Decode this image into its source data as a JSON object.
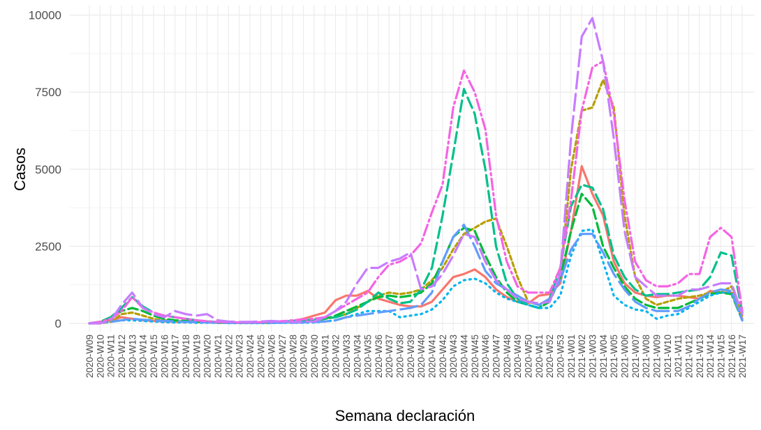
{
  "chart_data": {
    "type": "line",
    "xlabel": "Semana declaración",
    "ylabel": "Casos",
    "ylim": [
      0,
      10000
    ],
    "yticks": [
      0,
      2500,
      5000,
      7500,
      10000
    ],
    "grid": true,
    "legend": "none",
    "categories": [
      "2020-W09",
      "2020-W10",
      "2020-W11",
      "2020-W12",
      "2020-W13",
      "2020-W14",
      "2020-W15",
      "2020-W16",
      "2020-W17",
      "2020-W18",
      "2020-W19",
      "2020-W20",
      "2020-W21",
      "2020-W22",
      "2020-W23",
      "2020-W24",
      "2020-W25",
      "2020-W26",
      "2020-W27",
      "2020-W28",
      "2020-W29",
      "2020-W30",
      "2020-W31",
      "2020-W32",
      "2020-W33",
      "2020-W34",
      "2020-W35",
      "2020-W36",
      "2020-W37",
      "2020-W38",
      "2020-W39",
      "2020-W40",
      "2020-W41",
      "2020-W42",
      "2020-W43",
      "2020-W44",
      "2020-W45",
      "2020-W46",
      "2020-W47",
      "2020-W48",
      "2020-W49",
      "2020-W50",
      "2020-W51",
      "2020-W52",
      "2020-W53",
      "2021-W01",
      "2021-W02",
      "2021-W03",
      "2021-W04",
      "2021-W05",
      "2021-W06",
      "2021-W07",
      "2021-W08",
      "2021-W09",
      "2021-W10",
      "2021-W11",
      "2021-W12",
      "2021-W13",
      "2021-W14",
      "2021-W15",
      "2021-W16",
      "2021-W17"
    ],
    "series": [
      {
        "color": "#F8766D",
        "dash": "solid",
        "values": [
          0,
          50,
          100,
          200,
          150,
          100,
          80,
          60,
          50,
          50,
          40,
          30,
          20,
          20,
          20,
          20,
          20,
          30,
          40,
          80,
          150,
          250,
          350,
          750,
          900,
          900,
          1050,
          800,
          700,
          600,
          550,
          550,
          700,
          1100,
          1500,
          1600,
          1750,
          1500,
          1100,
          850,
          700,
          650,
          900,
          950,
          1300,
          3000,
          5100,
          4200,
          3500,
          2000,
          1300,
          1000,
          900,
          850,
          900,
          900,
          850,
          800,
          1050,
          1000,
          1000,
          150
        ]
      },
      {
        "color": "#B79F00",
        "dash": "6,4",
        "values": [
          0,
          0,
          50,
          300,
          350,
          250,
          150,
          100,
          80,
          60,
          50,
          30,
          20,
          20,
          20,
          20,
          20,
          20,
          30,
          40,
          50,
          100,
          150,
          200,
          300,
          500,
          700,
          900,
          1000,
          950,
          1000,
          1100,
          1400,
          1800,
          2400,
          2900,
          3100,
          3300,
          3400,
          2500,
          1500,
          700,
          600,
          800,
          1500,
          5000,
          6900,
          7000,
          7900,
          7000,
          3500,
          1500,
          800,
          600,
          700,
          800,
          850,
          900,
          1000,
          1000,
          1200,
          250
        ]
      },
      {
        "color": "#00BA38",
        "dash": "14,6",
        "values": [
          0,
          50,
          200,
          400,
          500,
          400,
          250,
          150,
          100,
          80,
          60,
          40,
          20,
          20,
          20,
          20,
          20,
          20,
          30,
          40,
          50,
          80,
          150,
          250,
          400,
          550,
          700,
          850,
          900,
          850,
          900,
          1000,
          1300,
          2000,
          2800,
          3100,
          3000,
          2200,
          1500,
          1000,
          700,
          600,
          500,
          700,
          1500,
          3000,
          4200,
          3800,
          2500,
          1800,
          1200,
          800,
          600,
          500,
          500,
          500,
          650,
          800,
          950,
          1000,
          950,
          100
        ]
      },
      {
        "color": "#00C08B",
        "dash": "16,7",
        "values": [
          0,
          50,
          200,
          500,
          850,
          550,
          350,
          250,
          200,
          150,
          100,
          60,
          40,
          30,
          20,
          20,
          30,
          40,
          60,
          80,
          100,
          130,
          160,
          200,
          300,
          450,
          700,
          1000,
          800,
          650,
          700,
          1100,
          1800,
          3500,
          5500,
          7600,
          6800,
          5000,
          2500,
          1300,
          800,
          600,
          500,
          800,
          1800,
          3800,
          4500,
          4400,
          3700,
          2200,
          1500,
          1100,
          900,
          950,
          950,
          1000,
          1050,
          1100,
          1500,
          2300,
          2200,
          350
        ]
      },
      {
        "color": "#00B4EF",
        "dash": "2,6",
        "values": [
          0,
          20,
          50,
          100,
          100,
          80,
          60,
          40,
          30,
          30,
          20,
          20,
          20,
          10,
          10,
          10,
          10,
          10,
          20,
          20,
          20,
          30,
          60,
          100,
          200,
          300,
          400,
          400,
          400,
          200,
          250,
          300,
          450,
          750,
          1200,
          1400,
          1450,
          1300,
          1000,
          800,
          700,
          600,
          500,
          500,
          900,
          2200,
          3000,
          3050,
          2000,
          900,
          600,
          450,
          400,
          150,
          250,
          300,
          500,
          700,
          900,
          1000,
          1000,
          100
        ]
      },
      {
        "color": "#619CFF",
        "dash": "24,8",
        "values": [
          0,
          20,
          50,
          100,
          150,
          120,
          100,
          80,
          60,
          50,
          40,
          30,
          20,
          20,
          20,
          20,
          20,
          20,
          20,
          20,
          30,
          40,
          60,
          100,
          200,
          250,
          300,
          350,
          400,
          450,
          500,
          600,
          1000,
          2000,
          2800,
          3200,
          2500,
          1700,
          1300,
          1100,
          900,
          700,
          600,
          800,
          1400,
          2400,
          2900,
          2900,
          2300,
          1600,
          1100,
          700,
          500,
          400,
          400,
          400,
          550,
          800,
          1000,
          1100,
          1050,
          100
        ]
      },
      {
        "color": "#F564E3",
        "dash": "16,5,3,5",
        "values": [
          0,
          50,
          150,
          400,
          850,
          500,
          350,
          250,
          200,
          150,
          100,
          70,
          50,
          40,
          30,
          30,
          40,
          50,
          70,
          100,
          130,
          150,
          200,
          400,
          600,
          800,
          1000,
          1500,
          1900,
          2000,
          2200,
          2600,
          3600,
          4500,
          7000,
          8200,
          7500,
          6300,
          3500,
          2000,
          1200,
          1000,
          1000,
          1000,
          1800,
          4000,
          6900,
          8300,
          8500,
          6800,
          4000,
          2000,
          1400,
          1200,
          1200,
          1300,
          1600,
          1600,
          2800,
          3100,
          2800,
          400
        ]
      },
      {
        "color": "#C77CFF",
        "dash": "24,8",
        "values": [
          0,
          0,
          100,
          600,
          1000,
          500,
          300,
          200,
          400,
          300,
          250,
          300,
          100,
          60,
          50,
          50,
          60,
          80,
          60,
          40,
          50,
          60,
          200,
          400,
          700,
          1300,
          1800,
          1800,
          2000,
          2100,
          2300,
          1100,
          1200,
          1600,
          2200,
          2900,
          2800,
          2000,
          1400,
          1100,
          800,
          700,
          650,
          700,
          1600,
          6000,
          9300,
          9900,
          8500,
          6000,
          3000,
          1500,
          1200,
          900,
          900,
          900,
          1100,
          1100,
          1200,
          1300,
          1300,
          300
        ]
      }
    ]
  }
}
